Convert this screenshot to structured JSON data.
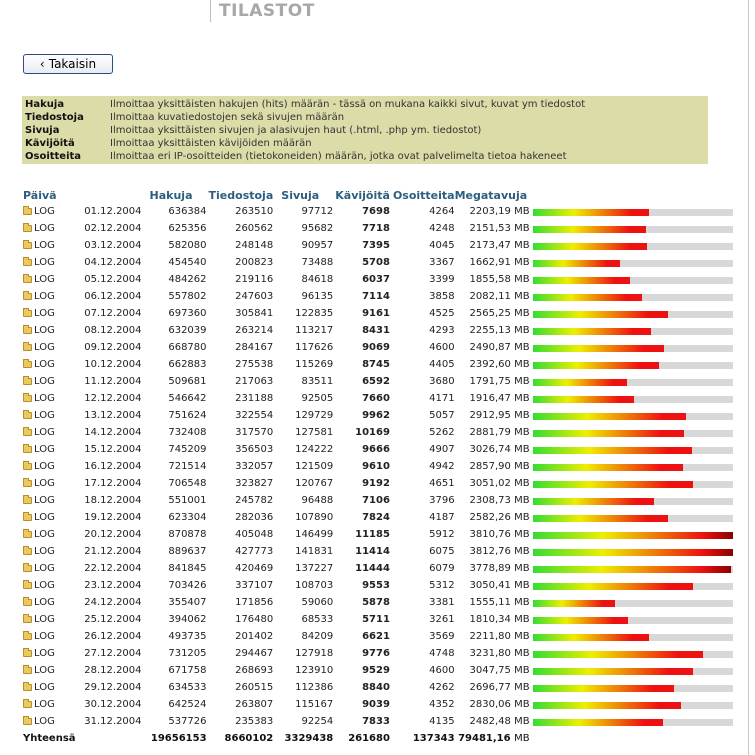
{
  "header": {
    "title": "TILASTOT"
  },
  "back_button": {
    "label": "Takaisin"
  },
  "legend": [
    {
      "term": "Hakuja",
      "desc": "Ilmoittaa yksittäisten hakujen (hits) määrän - tässä on mukana kaikki sivut, kuvat ym tiedostot"
    },
    {
      "term": "Tiedostoja",
      "desc": "Ilmoittaa kuvatiedostojen sekä sivujen määrän"
    },
    {
      "term": "Sivuja",
      "desc": "Ilmoittaa yksittäisten sivujen ja alasivujen haut (.html, .php ym. tiedostot)"
    },
    {
      "term": "Kävijöitä",
      "desc": "Ilmoittaa yksittäisten kävijöiden määrän"
    },
    {
      "term": "Osoitteita",
      "desc": "Ilmoittaa eri IP-osoitteiden (tietokoneiden) määrän, jotka ovat palvelimelta tietoa hakeneet"
    }
  ],
  "table": {
    "headers": {
      "day": "Päivä",
      "hits": "Hakuja",
      "files": "Tiedostoja",
      "pages": "Sivuja",
      "visits": "Kävijöitä",
      "ips": "Osoitteita",
      "mb": "Megatavuja"
    },
    "log_label": "LOG",
    "unit": "MB",
    "bar_max_mb": 3812.76,
    "rows": [
      {
        "date": "01.12.2004",
        "hits": "636384",
        "files": "263510",
        "pages": "97712",
        "visits": "7698",
        "ips": "4264",
        "mb": "2203,19",
        "mb_value": 2203.19
      },
      {
        "date": "02.12.2004",
        "hits": "625356",
        "files": "260562",
        "pages": "95682",
        "visits": "7718",
        "ips": "4248",
        "mb": "2151,53",
        "mb_value": 2151.53
      },
      {
        "date": "03.12.2004",
        "hits": "582080",
        "files": "248148",
        "pages": "90957",
        "visits": "7395",
        "ips": "4045",
        "mb": "2173,47",
        "mb_value": 2173.47
      },
      {
        "date": "04.12.2004",
        "hits": "454540",
        "files": "200823",
        "pages": "73488",
        "visits": "5708",
        "ips": "3367",
        "mb": "1662,91",
        "mb_value": 1662.91
      },
      {
        "date": "05.12.2004",
        "hits": "484262",
        "files": "219116",
        "pages": "84618",
        "visits": "6037",
        "ips": "3399",
        "mb": "1855,58",
        "mb_value": 1855.58
      },
      {
        "date": "06.12.2004",
        "hits": "557802",
        "files": "247603",
        "pages": "96135",
        "visits": "7114",
        "ips": "3858",
        "mb": "2082,11",
        "mb_value": 2082.11
      },
      {
        "date": "07.12.2004",
        "hits": "697360",
        "files": "305841",
        "pages": "122835",
        "visits": "9161",
        "ips": "4525",
        "mb": "2565,25",
        "mb_value": 2565.25
      },
      {
        "date": "08.12.2004",
        "hits": "632039",
        "files": "263214",
        "pages": "113217",
        "visits": "8431",
        "ips": "4293",
        "mb": "2255,13",
        "mb_value": 2255.13
      },
      {
        "date": "09.12.2004",
        "hits": "668780",
        "files": "284167",
        "pages": "117626",
        "visits": "9069",
        "ips": "4600",
        "mb": "2490,87",
        "mb_value": 2490.87
      },
      {
        "date": "10.12.2004",
        "hits": "662883",
        "files": "275538",
        "pages": "115269",
        "visits": "8745",
        "ips": "4405",
        "mb": "2392,60",
        "mb_value": 2392.6
      },
      {
        "date": "11.12.2004",
        "hits": "509681",
        "files": "217063",
        "pages": "83511",
        "visits": "6592",
        "ips": "3680",
        "mb": "1791,75",
        "mb_value": 1791.75
      },
      {
        "date": "12.12.2004",
        "hits": "546642",
        "files": "231188",
        "pages": "92505",
        "visits": "7660",
        "ips": "4171",
        "mb": "1916,47",
        "mb_value": 1916.47
      },
      {
        "date": "13.12.2004",
        "hits": "751624",
        "files": "322554",
        "pages": "129729",
        "visits": "9962",
        "ips": "5057",
        "mb": "2912,95",
        "mb_value": 2912.95
      },
      {
        "date": "14.12.2004",
        "hits": "732408",
        "files": "317570",
        "pages": "127581",
        "visits": "10169",
        "ips": "5262",
        "mb": "2881,79",
        "mb_value": 2881.79
      },
      {
        "date": "15.12.2004",
        "hits": "745209",
        "files": "356503",
        "pages": "124222",
        "visits": "9666",
        "ips": "4907",
        "mb": "3026,74",
        "mb_value": 3026.74
      },
      {
        "date": "16.12.2004",
        "hits": "721514",
        "files": "332057",
        "pages": "121509",
        "visits": "9610",
        "ips": "4942",
        "mb": "2857,90",
        "mb_value": 2857.9
      },
      {
        "date": "17.12.2004",
        "hits": "706548",
        "files": "323827",
        "pages": "120767",
        "visits": "9192",
        "ips": "4651",
        "mb": "3051,02",
        "mb_value": 3051.02
      },
      {
        "date": "18.12.2004",
        "hits": "551001",
        "files": "245782",
        "pages": "96488",
        "visits": "7106",
        "ips": "3796",
        "mb": "2308,73",
        "mb_value": 2308.73
      },
      {
        "date": "19.12.2004",
        "hits": "623304",
        "files": "282036",
        "pages": "107890",
        "visits": "7824",
        "ips": "4187",
        "mb": "2582,26",
        "mb_value": 2582.26
      },
      {
        "date": "20.12.2004",
        "hits": "870878",
        "files": "405048",
        "pages": "146499",
        "visits": "11185",
        "ips": "5912",
        "mb": "3810,76",
        "mb_value": 3810.76
      },
      {
        "date": "21.12.2004",
        "hits": "889637",
        "files": "427773",
        "pages": "141831",
        "visits": "11414",
        "ips": "6075",
        "mb": "3812,76",
        "mb_value": 3812.76
      },
      {
        "date": "22.12.2004",
        "hits": "841845",
        "files": "420469",
        "pages": "137227",
        "visits": "11444",
        "ips": "6079",
        "mb": "3778,89",
        "mb_value": 3778.89
      },
      {
        "date": "23.12.2004",
        "hits": "703426",
        "files": "337107",
        "pages": "108703",
        "visits": "9553",
        "ips": "5312",
        "mb": "3050,41",
        "mb_value": 3050.41
      },
      {
        "date": "24.12.2004",
        "hits": "355407",
        "files": "171856",
        "pages": "59060",
        "visits": "5878",
        "ips": "3381",
        "mb": "1555,11",
        "mb_value": 1555.11
      },
      {
        "date": "25.12.2004",
        "hits": "394062",
        "files": "176480",
        "pages": "68533",
        "visits": "5711",
        "ips": "3261",
        "mb": "1810,34",
        "mb_value": 1810.34
      },
      {
        "date": "26.12.2004",
        "hits": "493735",
        "files": "201402",
        "pages": "84209",
        "visits": "6621",
        "ips": "3569",
        "mb": "2211,80",
        "mb_value": 2211.8
      },
      {
        "date": "27.12.2004",
        "hits": "731205",
        "files": "294467",
        "pages": "127918",
        "visits": "9776",
        "ips": "4748",
        "mb": "3231,80",
        "mb_value": 3231.8
      },
      {
        "date": "28.12.2004",
        "hits": "671758",
        "files": "268693",
        "pages": "123910",
        "visits": "9529",
        "ips": "4600",
        "mb": "3047,75",
        "mb_value": 3047.75
      },
      {
        "date": "29.12.2004",
        "hits": "634533",
        "files": "260515",
        "pages": "112386",
        "visits": "8840",
        "ips": "4262",
        "mb": "2696,77",
        "mb_value": 2696.77
      },
      {
        "date": "30.12.2004",
        "hits": "642524",
        "files": "263807",
        "pages": "115167",
        "visits": "9039",
        "ips": "4352",
        "mb": "2830,06",
        "mb_value": 2830.06
      },
      {
        "date": "31.12.2004",
        "hits": "537726",
        "files": "235383",
        "pages": "92254",
        "visits": "7833",
        "ips": "4135",
        "mb": "2482,48",
        "mb_value": 2482.48
      }
    ],
    "total": {
      "label": "Yhteensä",
      "hits": "19656153",
      "files": "8660102",
      "pages": "3329438",
      "visits": "261680",
      "ips": "137343",
      "mb": "79481,16"
    }
  },
  "colors": {
    "bar_green": "#33dd33",
    "bar_yellow": "#eeee00",
    "bar_red": "#ee1111",
    "bar_darkred": "#8a0000",
    "track": "#d8d8d8",
    "legend_bg": "#dbdca8",
    "header_blue": "#2d5d7f"
  }
}
